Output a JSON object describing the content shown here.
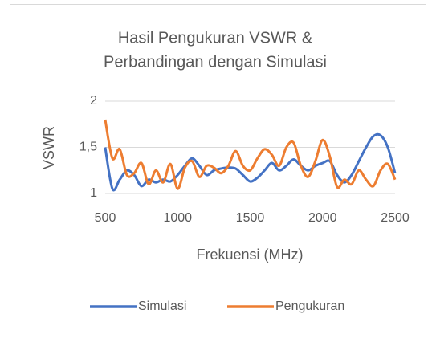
{
  "chart_data": {
    "type": "line",
    "title": [
      "Hasil Pengukuran VSWR &",
      "Perbandingan dengan Simulasi"
    ],
    "x_label": "Frekuensi (MHz)",
    "y_label": "VSWR",
    "x": [
      500,
      550,
      600,
      650,
      700,
      750,
      800,
      850,
      900,
      950,
      1000,
      1050,
      1100,
      1150,
      1200,
      1250,
      1300,
      1350,
      1400,
      1450,
      1500,
      1550,
      1600,
      1650,
      1700,
      1750,
      1800,
      1850,
      1900,
      1950,
      2000,
      2050,
      2100,
      2150,
      2200,
      2250,
      2300,
      2350,
      2400,
      2450,
      2500
    ],
    "series": [
      {
        "name": "Simulasi",
        "color": "#4472c4",
        "values": [
          1.5,
          1.05,
          1.15,
          1.25,
          1.2,
          1.08,
          1.15,
          1.12,
          1.15,
          1.13,
          1.2,
          1.3,
          1.38,
          1.3,
          1.2,
          1.25,
          1.27,
          1.28,
          1.27,
          1.2,
          1.13,
          1.17,
          1.25,
          1.33,
          1.25,
          1.3,
          1.37,
          1.3,
          1.25,
          1.3,
          1.33,
          1.35,
          1.2,
          1.12,
          1.2,
          1.35,
          1.5,
          1.62,
          1.63,
          1.5,
          1.22
        ]
      },
      {
        "name": "Pengukuran",
        "color": "#ed7d31",
        "values": [
          1.8,
          1.38,
          1.48,
          1.2,
          1.22,
          1.33,
          1.1,
          1.25,
          1.12,
          1.32,
          1.05,
          1.28,
          1.35,
          1.18,
          1.3,
          1.28,
          1.22,
          1.3,
          1.46,
          1.3,
          1.25,
          1.38,
          1.48,
          1.42,
          1.3,
          1.5,
          1.55,
          1.3,
          1.18,
          1.35,
          1.58,
          1.4,
          1.07,
          1.15,
          1.1,
          1.25,
          1.15,
          1.08,
          1.25,
          1.32,
          1.15
        ]
      }
    ],
    "xlim": [
      500,
      2500
    ],
    "xticks": [
      500,
      1000,
      1500,
      2000,
      2500
    ],
    "ylim": [
      1,
      2
    ],
    "yticks": [
      1,
      {
        "value": 1.5,
        "label": "1,5"
      },
      2
    ],
    "grid": true,
    "legend": "bottom"
  }
}
